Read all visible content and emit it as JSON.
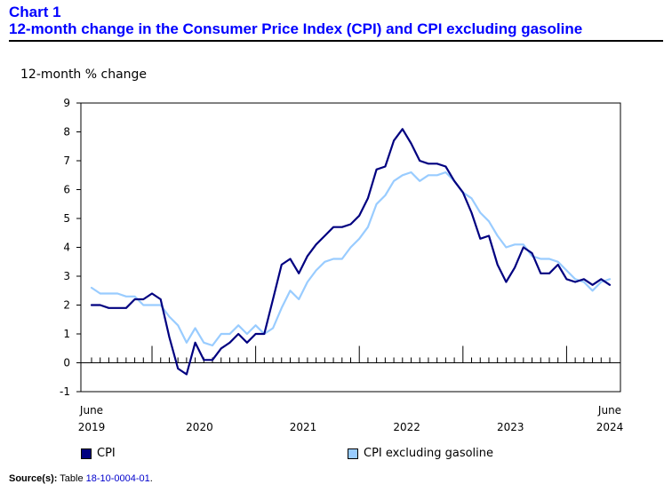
{
  "header": {
    "chart_label": "Chart 1",
    "title": "12-month change in the Consumer Price Index (CPI) and CPI excluding gasoline"
  },
  "chart_data": {
    "type": "line",
    "title": "12-month change in the Consumer Price Index (CPI) and CPI excluding gasoline",
    "ylabel": "12-month % change",
    "xlabel": "",
    "ylim": [
      -1,
      9
    ],
    "yticks": [
      "-1",
      "0",
      "1",
      "2",
      "3",
      "4",
      "5",
      "6",
      "7",
      "8",
      "9"
    ],
    "x_start": "June 2019",
    "x_end": "June 2024",
    "x_tick_labels": [
      {
        "month": "June",
        "year": "2019"
      },
      {
        "month": "",
        "year": "2020"
      },
      {
        "month": "",
        "year": "2021"
      },
      {
        "month": "",
        "year": "2022"
      },
      {
        "month": "",
        "year": "2023"
      },
      {
        "month": "June",
        "year": "2024"
      }
    ],
    "series": [
      {
        "name": "CPI",
        "color": "#000080",
        "values": [
          2.0,
          2.0,
          1.9,
          1.9,
          1.9,
          2.2,
          2.2,
          2.4,
          2.2,
          0.9,
          -0.2,
          -0.4,
          0.7,
          0.1,
          0.1,
          0.5,
          0.7,
          1.0,
          0.7,
          1.0,
          1.0,
          2.2,
          3.4,
          3.6,
          3.1,
          3.7,
          4.1,
          4.4,
          4.7,
          4.7,
          4.8,
          5.1,
          5.7,
          6.7,
          6.8,
          7.7,
          8.1,
          7.6,
          7.0,
          6.9,
          6.9,
          6.8,
          6.3,
          5.9,
          5.2,
          4.3,
          4.4,
          3.4,
          2.8,
          3.3,
          4.0,
          3.8,
          3.1,
          3.1,
          3.4,
          2.9,
          2.8,
          2.9,
          2.7,
          2.9,
          2.7
        ]
      },
      {
        "name": "CPI excluding gasoline",
        "color": "#99ccff",
        "values": [
          2.6,
          2.4,
          2.4,
          2.4,
          2.3,
          2.3,
          2.0,
          2.0,
          2.0,
          1.6,
          1.3,
          0.7,
          1.2,
          0.7,
          0.6,
          1.0,
          1.0,
          1.3,
          1.0,
          1.3,
          1.0,
          1.2,
          1.9,
          2.5,
          2.2,
          2.8,
          3.2,
          3.5,
          3.6,
          3.6,
          4.0,
          4.3,
          4.7,
          5.5,
          5.8,
          6.3,
          6.5,
          6.6,
          6.3,
          6.5,
          6.5,
          6.6,
          6.3,
          5.9,
          5.7,
          5.2,
          4.9,
          4.4,
          4.0,
          4.1,
          4.1,
          3.7,
          3.6,
          3.6,
          3.5,
          3.2,
          2.9,
          2.8,
          2.5,
          2.8,
          2.9
        ]
      }
    ],
    "legend": [
      "CPI",
      "CPI excluding gasoline"
    ]
  },
  "source": {
    "label": "Source(s):",
    "text": "Table",
    "table_id": "18-10-0004-01",
    "end": "."
  }
}
